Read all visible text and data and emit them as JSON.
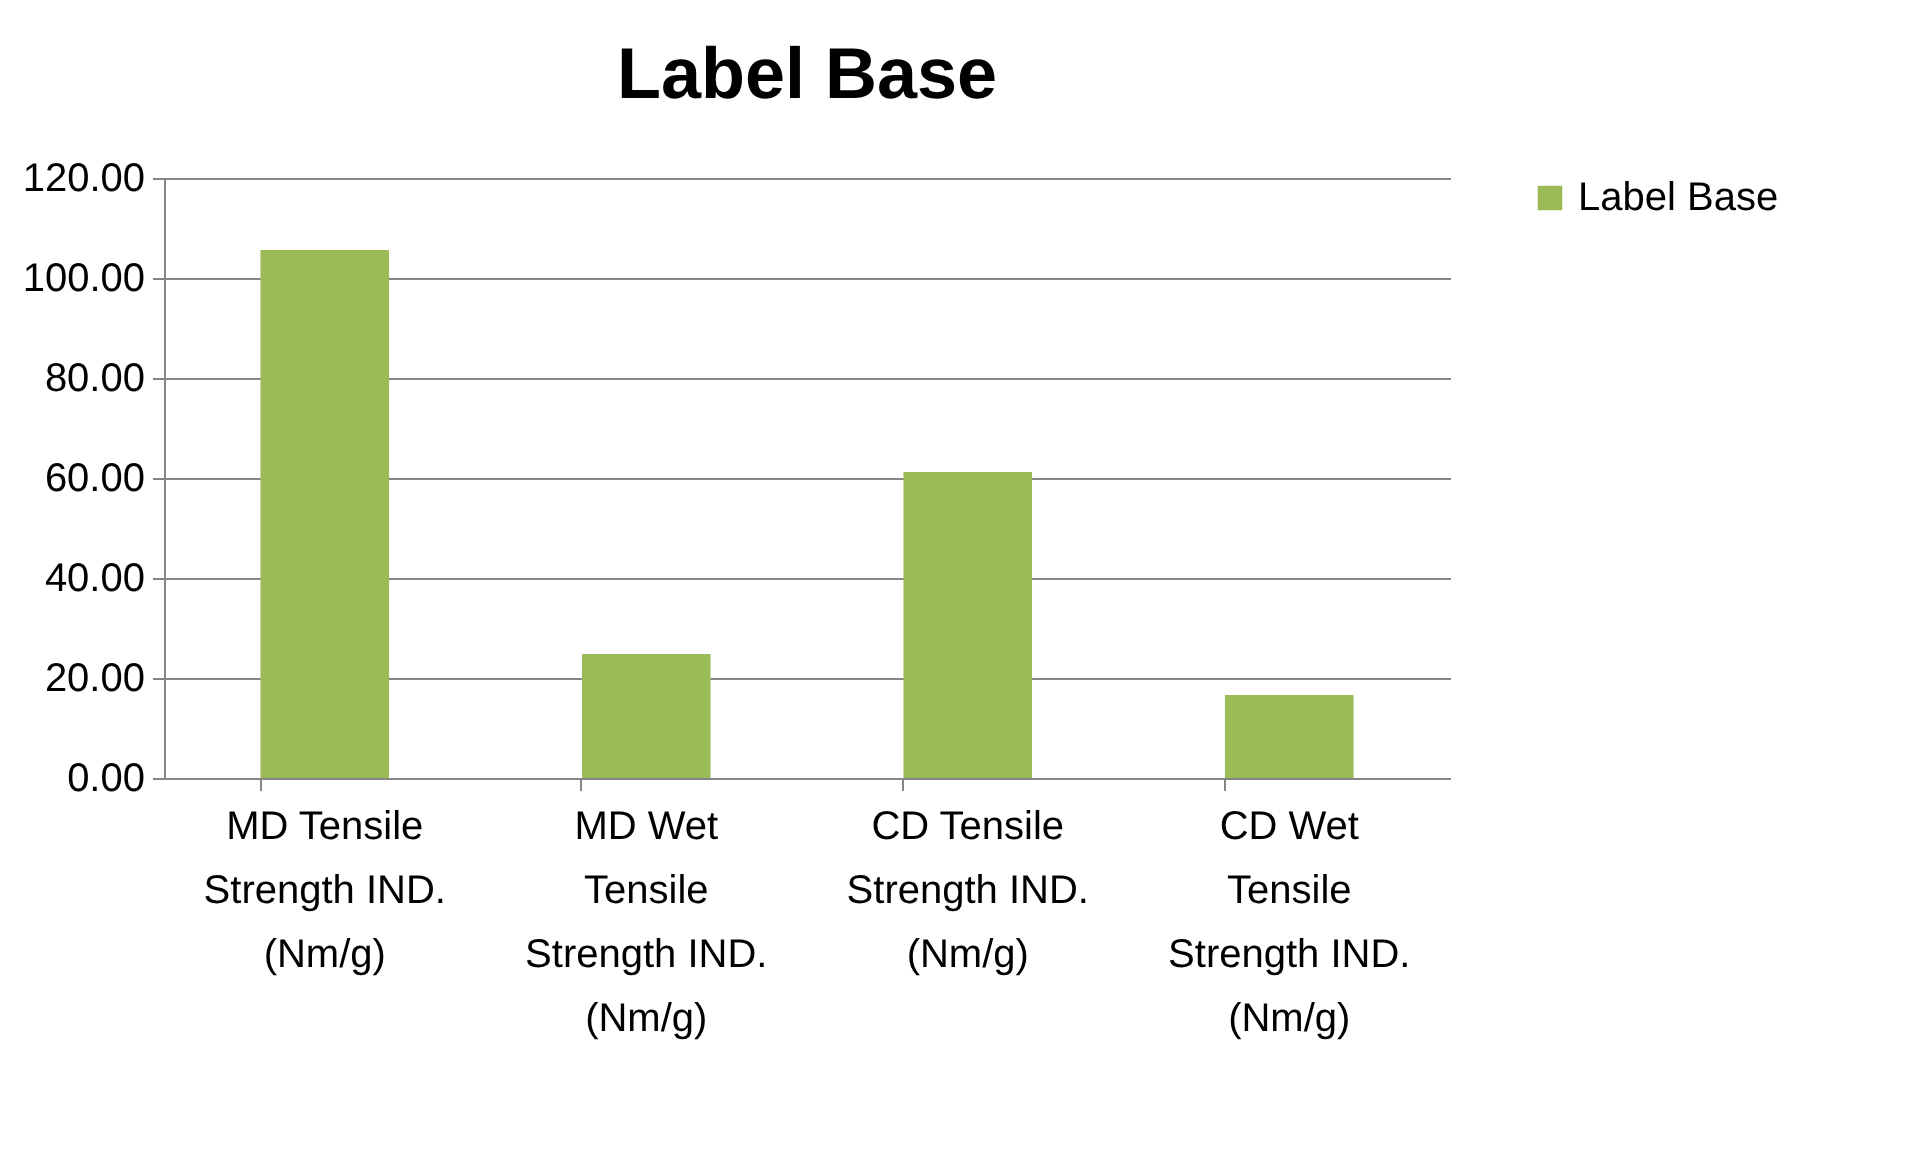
{
  "chart_data": {
    "type": "bar",
    "title": "Label Base",
    "categories": [
      "MD Tensile Strength IND. (Nm/g)",
      "MD Wet Tensile Strength IND. (Nm/g)",
      "CD Tensile Strength IND. (Nm/g)",
      "CD Wet Tensile Strength IND. (Nm/g)"
    ],
    "series": [
      {
        "name": "Label Base",
        "color": "#9bbb59",
        "values": [
          105.6,
          24.8,
          61.2,
          16.6
        ]
      }
    ],
    "ylim": [
      0,
      120
    ],
    "yticks": [
      {
        "value": 0,
        "label": "0.00"
      },
      {
        "value": 20,
        "label": "20.00"
      },
      {
        "value": 40,
        "label": "40.00"
      },
      {
        "value": 60,
        "label": "60.00"
      },
      {
        "value": 80,
        "label": "80.00"
      },
      {
        "value": 100,
        "label": "100.00"
      },
      {
        "value": 120,
        "label": "120.00"
      }
    ],
    "grid": "y",
    "legend": "right"
  }
}
